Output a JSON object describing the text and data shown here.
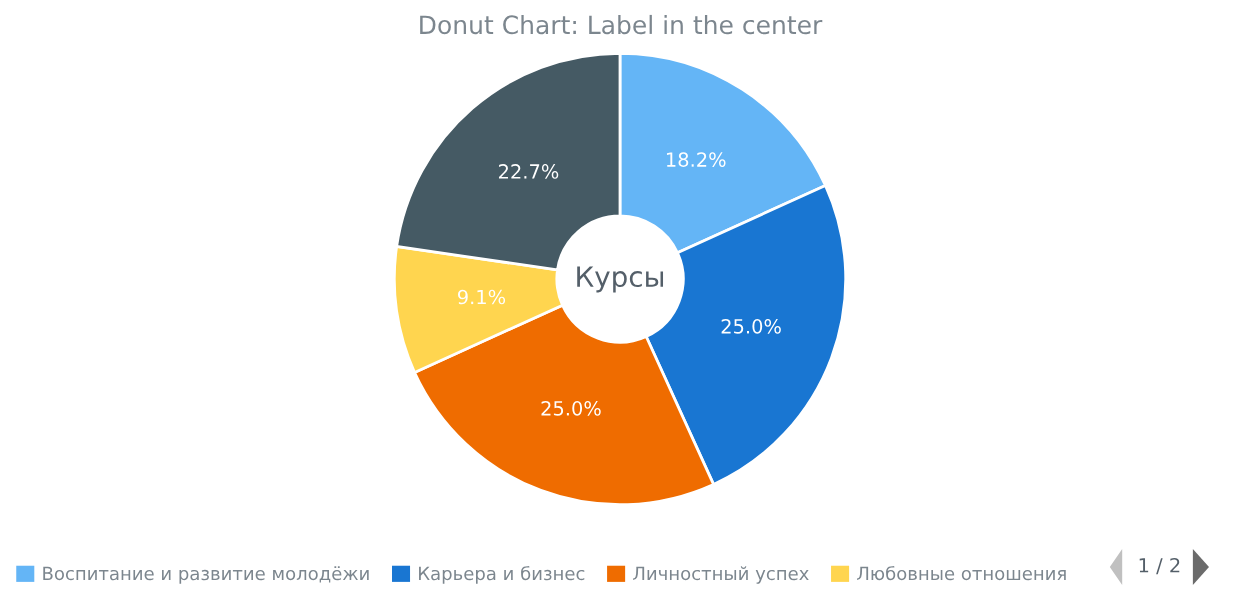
{
  "chart_data": {
    "type": "donut",
    "title": "Donut Chart: Label in the center",
    "categories": [
      "Воспитание и развитие молодёжи",
      "Карьера и бизнес",
      "Личностный успех",
      "Любовные отношения",
      null
    ],
    "values": [
      18.2,
      25.0,
      25.0,
      9.1,
      22.7
    ],
    "value_labels": [
      "18.2%",
      "25.0%",
      "25.0%",
      "9.1%",
      "22.7%"
    ],
    "colors": [
      "#64b5f6",
      "#1976d2",
      "#ef6c00",
      "#ffd54f",
      "#455a64"
    ],
    "annotations": [
      "Курсы",
      "1 / 2"
    ],
    "legend": "bottom"
  }
}
